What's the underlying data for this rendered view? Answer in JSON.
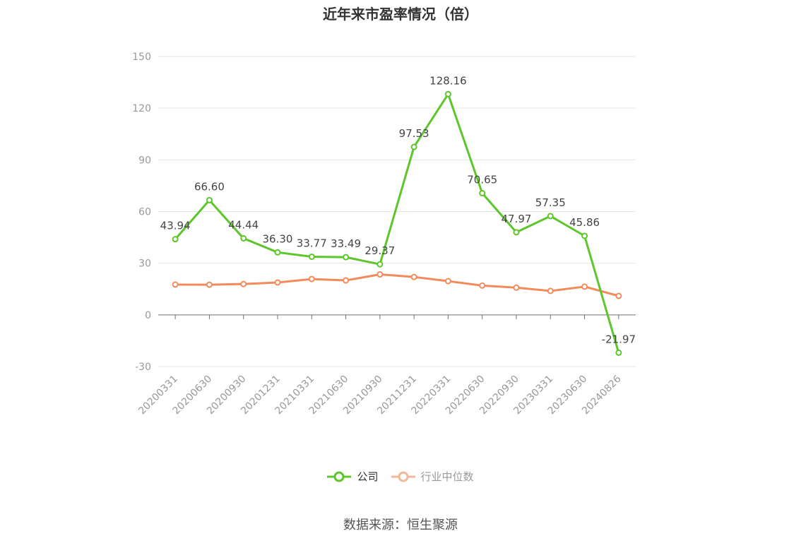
{
  "chart_data": {
    "type": "line",
    "title": "近年来市盈率情况（倍）",
    "categories": [
      "20200331",
      "20200630",
      "20200930",
      "20201231",
      "20210331",
      "20210630",
      "20210930",
      "20211231",
      "20220331",
      "20220630",
      "20220930",
      "20230331",
      "20230630",
      "20240826"
    ],
    "series": [
      {
        "name": "公司",
        "color": "#5cc62b",
        "values": [
          43.94,
          66.6,
          44.44,
          36.3,
          33.77,
          33.49,
          29.37,
          97.53,
          128.16,
          70.65,
          47.97,
          57.35,
          45.86,
          -21.97
        ],
        "labels": [
          "43.94",
          "66.60",
          "44.44",
          "36.30",
          "33.77",
          "33.49",
          "29.37",
          "97.53",
          "128.16",
          "70.65",
          "47.97",
          "57.35",
          "45.86",
          "-21.97"
        ]
      },
      {
        "name": "行业中位数",
        "color": "#f28b5c",
        "values": [
          17.6,
          17.5,
          17.9,
          18.8,
          20.8,
          20.0,
          23.5,
          22.0,
          19.6,
          17.0,
          15.8,
          13.9,
          16.4,
          11.0
        ]
      }
    ],
    "ylim": [
      -30,
      150
    ],
    "yticks": [
      -30,
      0,
      30,
      60,
      90,
      120,
      150
    ],
    "ytick_labels": [
      "-30",
      "0",
      "30",
      "60",
      "90",
      "120",
      "150"
    ],
    "grid": true,
    "legend_position": "bottom"
  },
  "legend": {
    "company_label": "公司",
    "industry_label": "行业中位数",
    "company_color": "#5cc62b",
    "industry_color": "#f5b79a"
  },
  "source": "数据来源：恒生聚源"
}
